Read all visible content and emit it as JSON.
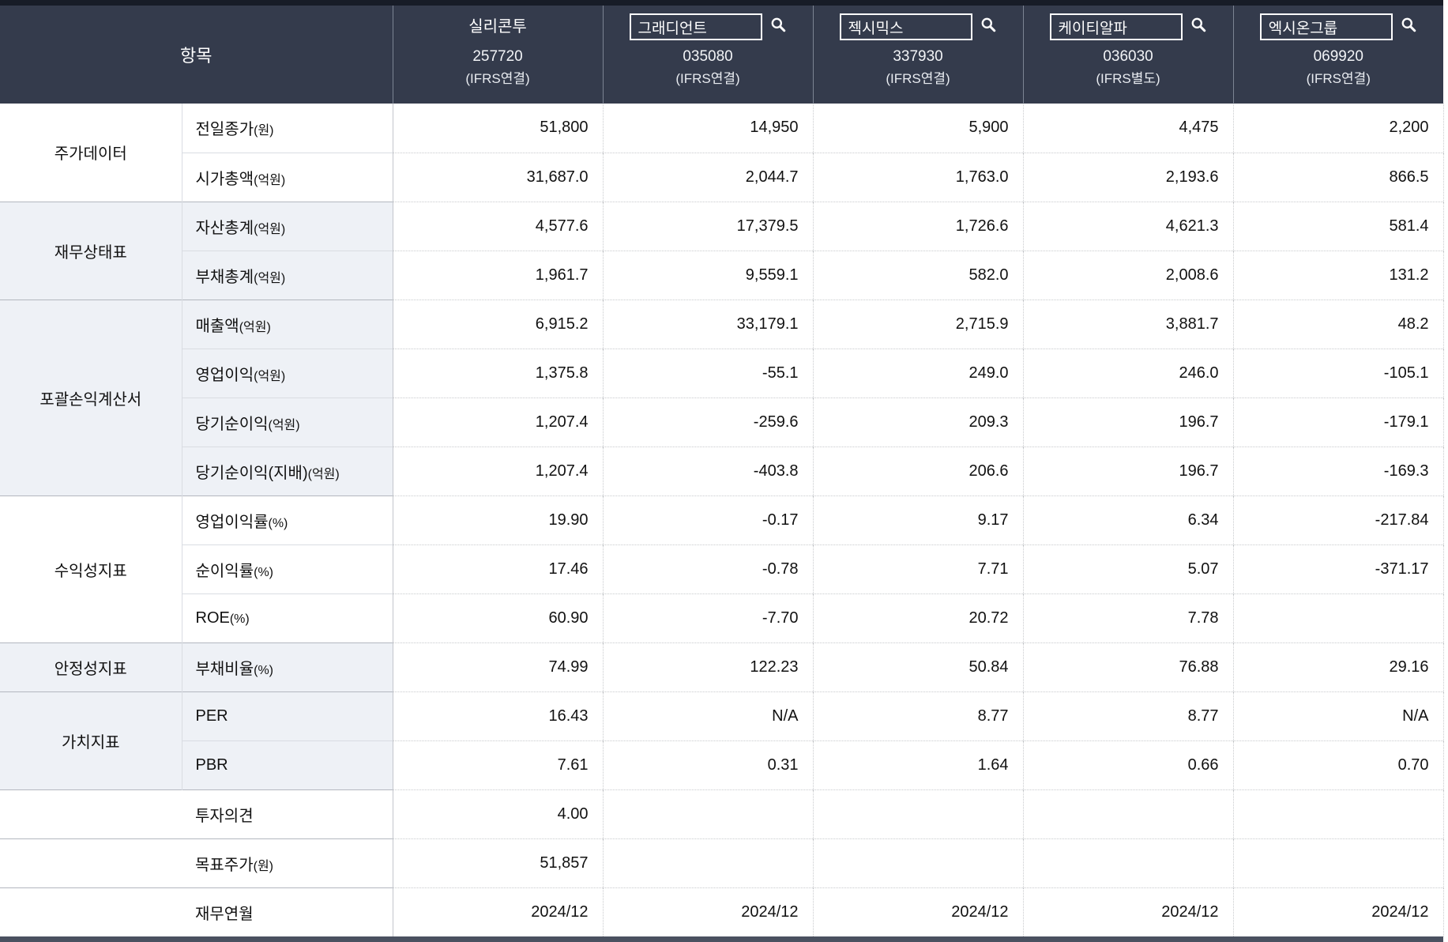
{
  "header": {
    "item_label": "항목",
    "companies": [
      {
        "name": "실리콘투",
        "code": "257720",
        "standard": "(IFRS연결)",
        "boxed": false
      },
      {
        "name": "그래디언트",
        "code": "035080",
        "standard": "(IFRS연결)",
        "boxed": true
      },
      {
        "name": "젝시믹스",
        "code": "337930",
        "standard": "(IFRS연결)",
        "boxed": true
      },
      {
        "name": "케이티알파",
        "code": "036030",
        "standard": "(IFRS별도)",
        "boxed": true
      },
      {
        "name": "엑시온그룹",
        "code": "069920",
        "standard": "(IFRS연결)",
        "boxed": true
      }
    ],
    "search_icon": "magnifier-icon"
  },
  "rows": [
    {
      "group": "주가데이터",
      "span": 2,
      "tint": false,
      "label": "전일종가",
      "unit": "(원)",
      "values": [
        "51,800",
        "14,950",
        "5,900",
        "4,475",
        "2,200"
      ]
    },
    {
      "tint": false,
      "label": "시가총액",
      "unit": "(억원)",
      "values": [
        "31,687.0",
        "2,044.7",
        "1,763.0",
        "2,193.6",
        "866.5"
      ]
    },
    {
      "group": "재무상태표",
      "span": 2,
      "tint": true,
      "label": "자산총계",
      "unit": "(억원)",
      "values": [
        "4,577.6",
        "17,379.5",
        "1,726.6",
        "4,621.3",
        "581.4"
      ]
    },
    {
      "tint": true,
      "label": "부채총계",
      "unit": "(억원)",
      "values": [
        "1,961.7",
        "9,559.1",
        "582.0",
        "2,008.6",
        "131.2"
      ]
    },
    {
      "group": "포괄손익계산서",
      "span": 4,
      "tint": true,
      "label": "매출액",
      "unit": "(억원)",
      "values": [
        "6,915.2",
        "33,179.1",
        "2,715.9",
        "3,881.7",
        "48.2"
      ]
    },
    {
      "tint": true,
      "label": "영업이익",
      "unit": "(억원)",
      "values": [
        "1,375.8",
        "-55.1",
        "249.0",
        "246.0",
        "-105.1"
      ]
    },
    {
      "tint": true,
      "label": "당기순이익",
      "unit": "(억원)",
      "values": [
        "1,207.4",
        "-259.6",
        "209.3",
        "196.7",
        "-179.1"
      ]
    },
    {
      "tint": true,
      "label": "당기순이익(지배)",
      "unit": "(억원)",
      "values": [
        "1,207.4",
        "-403.8",
        "206.6",
        "196.7",
        "-169.3"
      ]
    },
    {
      "group": "수익성지표",
      "span": 3,
      "tint": false,
      "label": "영업이익률",
      "unit": "(%)",
      "values": [
        "19.90",
        "-0.17",
        "9.17",
        "6.34",
        "-217.84"
      ]
    },
    {
      "tint": false,
      "label": "순이익률",
      "unit": "(%)",
      "values": [
        "17.46",
        "-0.78",
        "7.71",
        "5.07",
        "-371.17"
      ]
    },
    {
      "tint": false,
      "label": "ROE",
      "unit": "(%)",
      "values": [
        "60.90",
        "-7.70",
        "20.72",
        "7.78",
        ""
      ]
    },
    {
      "group": "안정성지표",
      "span": 1,
      "tint": true,
      "label": "부채비율",
      "unit": "(%)",
      "values": [
        "74.99",
        "122.23",
        "50.84",
        "76.88",
        "29.16"
      ]
    },
    {
      "group": "가치지표",
      "span": 2,
      "tint": true,
      "label": "PER",
      "unit": "",
      "values": [
        "16.43",
        "N/A",
        "8.77",
        "8.77",
        "N/A"
      ]
    },
    {
      "tint": true,
      "label": "PBR",
      "unit": "",
      "values": [
        "7.61",
        "0.31",
        "1.64",
        "0.66",
        "0.70"
      ]
    },
    {
      "ungrouped": true,
      "label": "투자의견",
      "unit": "",
      "values": [
        "4.00",
        "",
        "",
        "",
        ""
      ]
    },
    {
      "ungrouped": true,
      "label": "목표주가",
      "unit": "(원)",
      "values": [
        "51,857",
        "",
        "",
        "",
        ""
      ]
    },
    {
      "ungrouped": true,
      "label": "재무연월",
      "unit": "",
      "values": [
        "2024/12",
        "2024/12",
        "2024/12",
        "2024/12",
        "2024/12"
      ]
    }
  ],
  "colors": {
    "header_bg": "#343b4c",
    "header_top_strip": "#171c27",
    "bottom_bar": "#4a5160",
    "row_tint": "#eef1f6",
    "value_text": "#111111"
  }
}
